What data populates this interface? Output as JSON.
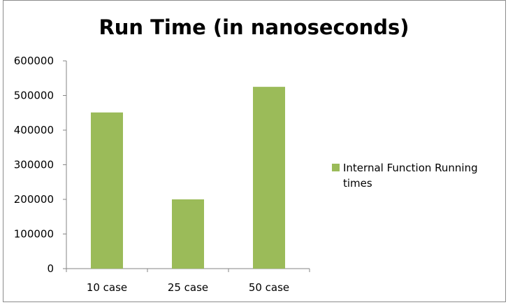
{
  "chart_data": {
    "type": "bar",
    "title": "Run Time (in nanoseconds)",
    "categories": [
      "10 case",
      "25 case",
      "50 case"
    ],
    "series": [
      {
        "name": "Internal Function Running times",
        "values": [
          451000,
          200000,
          525000
        ],
        "color": "#9bbb59"
      }
    ],
    "ylim": [
      0,
      600000
    ],
    "yticks": [
      0,
      100000,
      200000,
      300000,
      400000,
      500000,
      600000
    ],
    "grid": false,
    "legend": "right"
  }
}
